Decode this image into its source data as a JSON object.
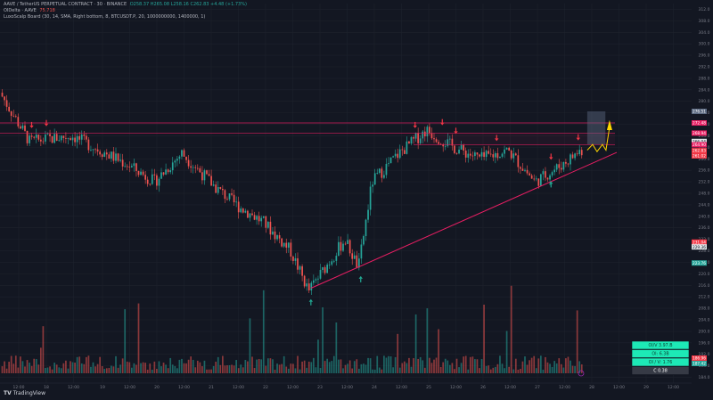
{
  "header": {
    "symbol_line": "AAVE / TetherUS PERPETUAL CONTRACT · 30 · BINANCE",
    "ohlc": "O258.37 H265.08 L258.16 C262.83 +4.48 (+1.73%)",
    "indicator1": "OIDelta · AAVE",
    "indicator1_val": "75.718",
    "indicator2": "LuxoScalp Board (30, 14, SMA, Right bottom, 8, BTCUSDT.P, 20, 1000000000, 1400000, 1)"
  },
  "branding": "TradingView",
  "colors": {
    "background": "#131722",
    "grid": "#1e222d",
    "up": "#26a69a",
    "down": "#ef5350",
    "trendline": "#e91e63",
    "resistance": "#e91e63",
    "arrow_down": "#f23645",
    "arrow_up": "#22ab94",
    "projection": "#ffd600",
    "box": "#5d6b82",
    "stats_bg": "#1de9b6"
  },
  "chart_data": {
    "type": "candlestick",
    "x_ticks": [
      "12:00",
      "18",
      "12:00",
      "19",
      "12:00",
      "20",
      "12:00",
      "21",
      "12:00",
      "22",
      "12:00",
      "23",
      "12:00",
      "24",
      "12:00",
      "25",
      "12:00",
      "26",
      "12:00",
      "27",
      "12:00",
      "28",
      "12:00",
      "29",
      "12:00"
    ],
    "y_ticks": [
      312,
      308,
      304,
      300,
      296,
      292,
      288,
      284,
      280,
      276,
      272,
      268,
      264,
      260,
      256,
      252,
      248,
      244,
      240,
      236,
      232,
      228,
      224,
      220,
      216,
      212,
      208,
      204,
      200,
      196,
      192,
      188,
      184
    ],
    "ylim": [
      182,
      314
    ],
    "price_labels": [
      {
        "value": "276.51",
        "bg": "#5d6b82"
      },
      {
        "value": "272.48",
        "bg": "#e91e63"
      },
      {
        "value": "268.94",
        "bg": "#e91e63"
      },
      {
        "value": "266.04",
        "bg": "#e1e4e8",
        "fg": "#131722"
      },
      {
        "value": "264.90",
        "bg": "#e91e63"
      },
      {
        "value": "262.83",
        "bg": "#f23645"
      },
      {
        "value": "261.02",
        "bg": "#f23645"
      },
      {
        "value": "231.04",
        "bg": "#f23645"
      },
      {
        "value": "229.36",
        "bg": "#e1e4e8",
        "fg": "#131722"
      },
      {
        "value": "223.76",
        "bg": "#26a69a"
      }
    ],
    "volume_labels": [
      {
        "value": "186.96",
        "bg": "#f23645"
      },
      {
        "value": "187.42",
        "bg": "#26a69a"
      }
    ],
    "key_points": [
      {
        "x": "17 06:00",
        "price": 283
      },
      {
        "x": "17 18:00",
        "price": 266
      },
      {
        "x": "18 12:00",
        "price": 268
      },
      {
        "x": "19 12:00",
        "price": 258
      },
      {
        "x": "20 00:00",
        "price": 252
      },
      {
        "x": "20 12:00",
        "price": 262
      },
      {
        "x": "21 03:00",
        "price": 250
      },
      {
        "x": "21 12:00",
        "price": 244
      },
      {
        "x": "22 00:00",
        "price": 238
      },
      {
        "x": "22 12:00",
        "price": 228
      },
      {
        "x": "22 20:00",
        "price": 214
      },
      {
        "x": "23 12:00",
        "price": 232
      },
      {
        "x": "23 18:00",
        "price": 222
      },
      {
        "x": "24 00:00",
        "price": 252
      },
      {
        "x": "24 12:00",
        "price": 262
      },
      {
        "x": "25 00:00",
        "price": 270
      },
      {
        "x": "25 12:00",
        "price": 264
      },
      {
        "x": "26 00:00",
        "price": 260
      },
      {
        "x": "26 12:00",
        "price": 263
      },
      {
        "x": "27 00:00",
        "price": 252
      },
      {
        "x": "27 12:00",
        "price": 258
      },
      {
        "x": "27 20:00",
        "price": 263
      }
    ],
    "resistance_levels": [
      272.48,
      268.94,
      264.9
    ],
    "trendline": {
      "from": {
        "x": "22 20:00",
        "price": 215
      },
      "to": {
        "x": "28 00:00",
        "price": 261
      }
    },
    "projection_box": {
      "x_from": "27 22:00",
      "x_to": "28 06:00",
      "price_top": 276.5,
      "price_bottom": 265
    },
    "down_arrows": [
      "17 18:00",
      "18 00:00",
      "24 18:00",
      "25 06:00",
      "25 12:00",
      "26 06:00",
      "27 06:00",
      "27 18:00"
    ],
    "up_arrows": [
      "22 20:00",
      "23 18:00",
      "27 06:00"
    ]
  },
  "stats_box": {
    "rows": [
      "OI/V 3.97.B",
      "OI: 6.3B",
      "OI / V: 1.76",
      "C 0.38"
    ]
  },
  "go_to_live": "⊙"
}
